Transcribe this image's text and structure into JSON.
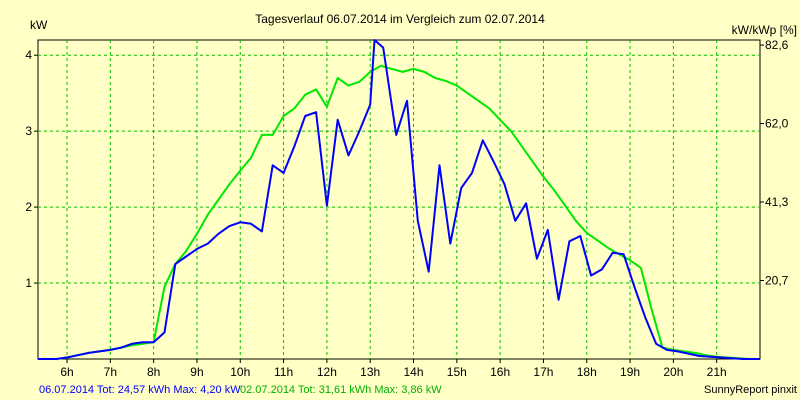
{
  "chart_data": {
    "type": "line",
    "title": "Tagesverlauf 06.07.2014 im Vergleich zum 02.07.2014",
    "ylabel_left": "kW",
    "ylabel_right": "kW/kWp [%]",
    "x_ticks": [
      "6h",
      "7h",
      "8h",
      "9h",
      "10h",
      "11h",
      "12h",
      "13h",
      "14h",
      "15h",
      "16h",
      "17h",
      "18h",
      "19h",
      "20h",
      "21h"
    ],
    "x_range_hours": [
      5.33,
      22.0
    ],
    "y_range": [
      0,
      4.2
    ],
    "y_ticks_left": [
      "1",
      "2",
      "3",
      "4"
    ],
    "y_ticks_right": [
      "20,7",
      "41,3",
      "62,0",
      "82,6"
    ],
    "y_ticks_right_at_kw": [
      1.033,
      2.067,
      3.1,
      4.133
    ],
    "grid": true,
    "series": [
      {
        "name": "06.07.2014",
        "color": "#0000ff",
        "x": [
          5.33,
          5.75,
          6.0,
          6.25,
          6.5,
          6.75,
          7.0,
          7.25,
          7.5,
          7.75,
          8.0,
          8.25,
          8.5,
          8.75,
          9.0,
          9.25,
          9.5,
          9.75,
          10.0,
          10.25,
          10.5,
          10.75,
          11.0,
          11.25,
          11.5,
          11.75,
          12.0,
          12.25,
          12.5,
          12.75,
          13.0,
          13.1,
          13.3,
          13.6,
          13.85,
          14.1,
          14.35,
          14.6,
          14.85,
          15.1,
          15.35,
          15.6,
          15.85,
          16.1,
          16.35,
          16.6,
          16.85,
          17.1,
          17.35,
          17.6,
          17.85,
          18.1,
          18.35,
          18.6,
          18.85,
          19.1,
          19.35,
          19.6,
          19.85,
          20.1,
          20.35,
          20.6,
          20.85,
          21.1,
          21.35,
          21.6,
          22.0
        ],
        "values": [
          0,
          0,
          0.02,
          0.05,
          0.08,
          0.1,
          0.12,
          0.15,
          0.2,
          0.22,
          0.22,
          0.35,
          1.25,
          1.35,
          1.45,
          1.52,
          1.65,
          1.75,
          1.8,
          1.78,
          1.68,
          2.55,
          2.45,
          2.8,
          3.2,
          3.25,
          2.02,
          3.15,
          2.68,
          3.0,
          3.35,
          4.2,
          4.1,
          2.95,
          3.4,
          1.82,
          1.15,
          2.55,
          1.52,
          2.25,
          2.45,
          2.88,
          2.6,
          2.3,
          1.82,
          2.05,
          1.32,
          1.7,
          0.78,
          1.55,
          1.62,
          1.1,
          1.18,
          1.4,
          1.38,
          0.95,
          0.55,
          0.2,
          0.12,
          0.1,
          0.07,
          0.04,
          0.03,
          0.02,
          0.01,
          0,
          0
        ]
      },
      {
        "name": "02.07.2014",
        "color": "#00e800",
        "x": [
          5.33,
          5.75,
          6.0,
          6.25,
          6.5,
          6.75,
          7.0,
          7.25,
          7.5,
          7.75,
          8.0,
          8.25,
          8.5,
          8.75,
          9.0,
          9.25,
          9.5,
          9.75,
          10.0,
          10.25,
          10.5,
          10.75,
          11.0,
          11.25,
          11.5,
          11.75,
          12.0,
          12.25,
          12.5,
          12.75,
          13.0,
          13.25,
          13.5,
          13.75,
          14.0,
          14.25,
          14.5,
          14.75,
          15.0,
          15.25,
          15.5,
          15.75,
          16.0,
          16.25,
          16.5,
          16.75,
          17.0,
          17.25,
          17.5,
          17.75,
          18.0,
          18.25,
          18.5,
          18.75,
          19.0,
          19.25,
          19.5,
          19.75,
          20.0,
          20.25,
          20.5,
          20.75,
          21.0,
          21.25,
          21.5,
          21.75,
          22.0
        ],
        "values": [
          0,
          0,
          0.02,
          0.05,
          0.08,
          0.1,
          0.12,
          0.15,
          0.18,
          0.2,
          0.22,
          0.95,
          1.25,
          1.42,
          1.65,
          1.9,
          2.1,
          2.3,
          2.48,
          2.65,
          2.95,
          2.95,
          3.2,
          3.3,
          3.48,
          3.55,
          3.32,
          3.7,
          3.6,
          3.65,
          3.78,
          3.86,
          3.82,
          3.78,
          3.82,
          3.78,
          3.7,
          3.66,
          3.6,
          3.5,
          3.4,
          3.3,
          3.15,
          3.0,
          2.8,
          2.6,
          2.4,
          2.22,
          2.02,
          1.82,
          1.66,
          1.56,
          1.46,
          1.38,
          1.3,
          1.2,
          0.65,
          0.15,
          0.12,
          0.1,
          0.08,
          0.05,
          0.03,
          0.02,
          0.01,
          0,
          0
        ]
      }
    ],
    "footer_left": [
      {
        "text": "06.07.2014 Tot: 24,57 kWh Max: 4,20 kW",
        "color": "#0000ff"
      },
      {
        "text": "02.07.2014 Tot: 31,61 kWh Max: 3,86 kW",
        "color": "#00b000"
      }
    ],
    "footer_right": "SunnyReport pinxit"
  }
}
